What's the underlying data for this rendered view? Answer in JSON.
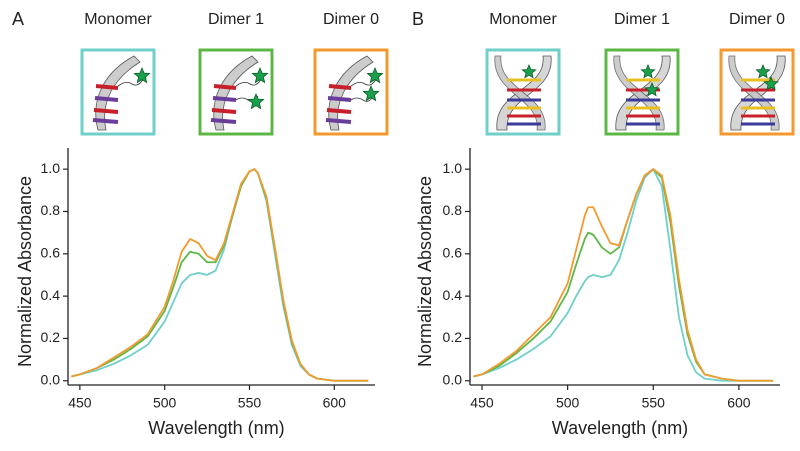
{
  "chart_data": [
    {
      "type": "line",
      "panel": "A",
      "xlabel": "Wavelength (nm)",
      "ylabel": "Normalized Absorbance",
      "x": [
        445,
        450,
        460,
        470,
        480,
        490,
        500,
        505,
        510,
        515,
        520,
        525,
        530,
        535,
        540,
        545,
        550,
        553,
        555,
        560,
        565,
        570,
        575,
        580,
        585,
        590,
        600,
        620
      ],
      "series": [
        {
          "name": "Monomer",
          "color": "#6fcfc9",
          "values": [
            0.02,
            0.03,
            0.05,
            0.08,
            0.12,
            0.17,
            0.28,
            0.37,
            0.46,
            0.5,
            0.51,
            0.5,
            0.52,
            0.62,
            0.78,
            0.92,
            0.99,
            1.0,
            0.98,
            0.85,
            0.6,
            0.35,
            0.17,
            0.07,
            0.03,
            0.01,
            0.0,
            0.0
          ]
        },
        {
          "name": "Dimer 1",
          "color": "#5cb846",
          "values": [
            0.02,
            0.03,
            0.06,
            0.1,
            0.15,
            0.21,
            0.33,
            0.44,
            0.56,
            0.61,
            0.6,
            0.56,
            0.56,
            0.64,
            0.78,
            0.92,
            0.99,
            1.0,
            0.98,
            0.86,
            0.62,
            0.37,
            0.18,
            0.08,
            0.03,
            0.01,
            0.0,
            0.0
          ]
        },
        {
          "name": "Dimer 0",
          "color": "#f39a2f",
          "values": [
            0.02,
            0.03,
            0.06,
            0.11,
            0.16,
            0.22,
            0.35,
            0.47,
            0.61,
            0.67,
            0.65,
            0.59,
            0.57,
            0.65,
            0.79,
            0.93,
            0.99,
            1.0,
            0.98,
            0.87,
            0.63,
            0.38,
            0.19,
            0.08,
            0.03,
            0.01,
            0.0,
            0.0
          ]
        }
      ],
      "xlim": [
        443,
        624
      ],
      "ylim": [
        -0.02,
        1.1
      ],
      "xticks": [
        450,
        500,
        550,
        600
      ],
      "yticks": [
        {
          "value": 0,
          "label": "0.0"
        },
        0.2,
        0.4,
        0.6,
        0.8,
        {
          "value": 1,
          "label": "1.0"
        }
      ]
    },
    {
      "type": "line",
      "panel": "B",
      "xlabel": "Wavelength (nm)",
      "ylabel": "Normalized Absorbance",
      "x": [
        445,
        450,
        460,
        470,
        480,
        490,
        500,
        505,
        510,
        512,
        515,
        520,
        525,
        530,
        535,
        540,
        545,
        550,
        555,
        560,
        565,
        570,
        575,
        580,
        590,
        600,
        620
      ],
      "series": [
        {
          "name": "Monomer",
          "color": "#6fcfc9",
          "values": [
            0.02,
            0.03,
            0.06,
            0.1,
            0.15,
            0.21,
            0.32,
            0.4,
            0.47,
            0.49,
            0.5,
            0.49,
            0.5,
            0.57,
            0.7,
            0.85,
            0.96,
            1.0,
            0.92,
            0.62,
            0.3,
            0.12,
            0.04,
            0.01,
            0.0,
            0.0,
            0.0
          ]
        },
        {
          "name": "Dimer 1",
          "color": "#5cb846",
          "values": [
            0.02,
            0.03,
            0.07,
            0.13,
            0.2,
            0.28,
            0.42,
            0.55,
            0.67,
            0.7,
            0.69,
            0.63,
            0.6,
            0.63,
            0.76,
            0.88,
            0.97,
            1.0,
            0.96,
            0.75,
            0.45,
            0.22,
            0.09,
            0.03,
            0.01,
            0.0,
            0.0
          ]
        },
        {
          "name": "Dimer 0",
          "color": "#f39a2f",
          "values": [
            0.02,
            0.03,
            0.08,
            0.14,
            0.22,
            0.3,
            0.46,
            0.62,
            0.78,
            0.82,
            0.82,
            0.73,
            0.65,
            0.64,
            0.76,
            0.88,
            0.97,
            1.0,
            0.97,
            0.78,
            0.48,
            0.24,
            0.1,
            0.03,
            0.01,
            0.0,
            0.0
          ]
        }
      ],
      "xlim": [
        443,
        624
      ],
      "ylim": [
        -0.02,
        1.1
      ],
      "xticks": [
        450,
        500,
        550,
        600
      ],
      "yticks": [
        {
          "value": 0,
          "label": "0.0"
        },
        0.2,
        0.4,
        0.6,
        0.8,
        {
          "value": 1,
          "label": "1.0"
        }
      ]
    }
  ]
}
